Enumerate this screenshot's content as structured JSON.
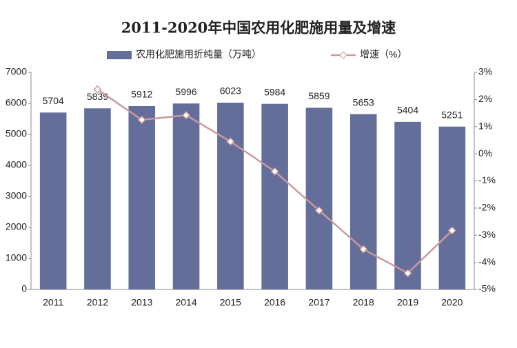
{
  "chart_data": {
    "type": "bar",
    "title": "2011-2020年中国农用化肥施用量及增速",
    "categories": [
      "2011",
      "2012",
      "2013",
      "2014",
      "2015",
      "2016",
      "2017",
      "2018",
      "2019",
      "2020"
    ],
    "series": [
      {
        "name": "农用化肥施用折纯量（万吨）",
        "color": "#646e9a",
        "values": [
          5704,
          5839,
          5912,
          5996,
          6023,
          5984,
          5859,
          5653,
          5404,
          5251
        ]
      },
      {
        "name": "增速（%）",
        "color": "#c99a9c",
        "type": "line",
        "axis": "y2",
        "values": [
          null,
          2.37,
          1.25,
          1.42,
          0.45,
          -0.65,
          -2.09,
          -3.52,
          -4.4,
          -2.83
        ]
      }
    ],
    "ylim": [
      0,
      7000
    ],
    "yticks": [
      0,
      1000,
      2000,
      3000,
      4000,
      5000,
      6000,
      7000
    ],
    "y2lim": [
      -5,
      3
    ],
    "y2ticks": [
      {
        "value": -5,
        "label": "-5%"
      },
      {
        "value": -4,
        "label": "-4%"
      },
      {
        "value": -3,
        "label": "-3%"
      },
      {
        "value": -2,
        "label": "-2%"
      },
      {
        "value": -1,
        "label": "-1%"
      },
      {
        "value": 0,
        "label": "0%"
      },
      {
        "value": 1,
        "label": "1%"
      },
      {
        "value": 2,
        "label": "2%"
      },
      {
        "value": 3,
        "label": "3%"
      }
    ],
    "legend": "top"
  }
}
